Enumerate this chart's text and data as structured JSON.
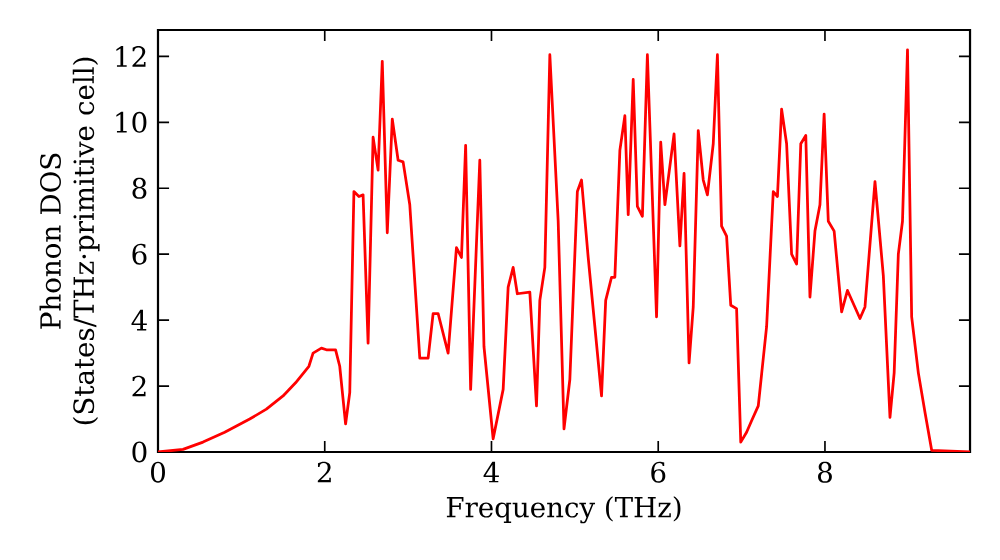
{
  "chart_data": {
    "type": "line",
    "xlabel": "Frequency (THz)",
    "ylabel": "Phonon DOS (States/THz·primitive cell)",
    "xlim": [
      0,
      9.74
    ],
    "ylim": [
      0,
      12.8
    ],
    "xticks": [
      0,
      2,
      4,
      6,
      8
    ],
    "yticks": [
      0,
      2,
      4,
      6,
      8,
      10,
      12
    ],
    "marker": "none",
    "line_style": "solid",
    "series": [
      {
        "color": "#ff0000",
        "x": [
          0,
          0.3,
          0.54,
          0.8,
          1.1,
          1.3,
          1.5,
          1.65,
          1.81,
          1.86,
          1.96,
          2.02,
          2.13,
          2.18,
          2.25,
          2.3,
          2.35,
          2.41,
          2.46,
          2.52,
          2.58,
          2.64,
          2.69,
          2.75,
          2.81,
          2.88,
          2.94,
          3.02,
          3.14,
          3.24,
          3.3,
          3.36,
          3.48,
          3.58,
          3.64,
          3.69,
          3.75,
          3.86,
          3.91,
          4.02,
          4.14,
          4.2,
          4.26,
          4.31,
          4.46,
          4.54,
          4.58,
          4.64,
          4.7,
          4.8,
          4.87,
          4.94,
          5.03,
          5.08,
          5.16,
          5.32,
          5.37,
          5.44,
          5.48,
          5.54,
          5.6,
          5.64,
          5.7,
          5.75,
          5.81,
          5.87,
          5.98,
          6.03,
          6.08,
          6.19,
          6.26,
          6.31,
          6.37,
          6.42,
          6.48,
          6.54,
          6.59,
          6.66,
          6.71,
          6.76,
          6.82,
          6.87,
          6.94,
          6.99,
          7.06,
          7.12,
          7.2,
          7.3,
          7.38,
          7.43,
          7.48,
          7.54,
          7.6,
          7.66,
          7.71,
          7.77,
          7.82,
          7.88,
          7.94,
          7.99,
          8.04,
          8.11,
          8.2,
          8.27,
          8.42,
          8.48,
          8.6,
          8.7,
          8.78,
          8.83,
          8.88,
          8.93,
          8.99,
          9.04,
          9.12,
          9.2,
          9.28,
          9.74
        ],
        "values": [
          0,
          0.08,
          0.3,
          0.6,
          1.0,
          1.3,
          1.7,
          2.1,
          2.6,
          3.0,
          3.15,
          3.1,
          3.1,
          2.6,
          0.85,
          1.8,
          7.9,
          7.75,
          7.8,
          3.3,
          9.55,
          8.55,
          11.85,
          6.65,
          10.1,
          8.85,
          8.8,
          7.5,
          2.85,
          2.85,
          4.2,
          4.2,
          3.0,
          6.2,
          5.9,
          9.3,
          1.9,
          8.85,
          3.2,
          0.4,
          1.9,
          5.0,
          5.6,
          4.8,
          4.85,
          1.4,
          4.6,
          5.6,
          12.05,
          7.0,
          0.7,
          2.2,
          7.9,
          8.25,
          5.9,
          1.7,
          4.6,
          5.3,
          5.3,
          9.15,
          10.2,
          7.2,
          11.3,
          7.45,
          7.15,
          12.05,
          4.1,
          9.4,
          7.5,
          9.65,
          6.25,
          8.45,
          2.7,
          4.4,
          9.75,
          8.25,
          7.8,
          9.35,
          12.05,
          6.85,
          6.55,
          4.45,
          4.35,
          0.3,
          0.6,
          0.95,
          1.4,
          3.8,
          7.9,
          7.75,
          10.4,
          9.35,
          6.0,
          5.7,
          9.35,
          9.6,
          4.7,
          6.7,
          7.5,
          10.25,
          7.0,
          6.7,
          4.25,
          4.9,
          4.05,
          4.4,
          8.2,
          5.35,
          1.05,
          2.4,
          6.0,
          7.0,
          12.2,
          4.1,
          2.4,
          1.2,
          0.05,
          0
        ]
      }
    ]
  }
}
